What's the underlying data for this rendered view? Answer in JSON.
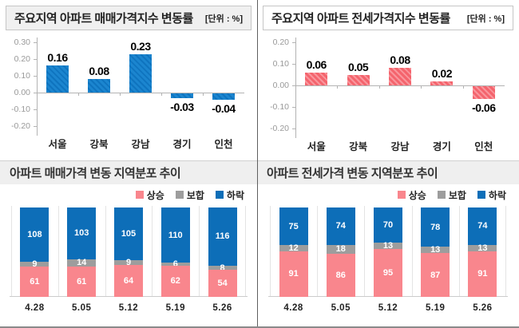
{
  "colors": {
    "rise_pink": "#f9868d",
    "flat_gray": "#9d9d9d",
    "fall_blue": "#0d6eb8",
    "hatch_blue_base": "#1b85cf",
    "hatch_pink_base": "#f4646d",
    "header_fill": "#f0f0f0",
    "header_border": "#c6c6c6",
    "axis": "#b3b3b3",
    "divider": "#5f5f5f"
  },
  "legend": [
    {
      "label": "상승",
      "color": "#f9868d"
    },
    {
      "label": "보합",
      "color": "#9d9d9d"
    },
    {
      "label": "하락",
      "color": "#0d6eb8"
    }
  ],
  "chart_data": [
    {
      "id": "sale_index",
      "type": "bar",
      "title": "주요지역 아파트 매매가격지수 변동률",
      "unit": "[단위 : %]",
      "categories": [
        "서울",
        "강북",
        "강남",
        "경기",
        "인천"
      ],
      "values": [
        0.16,
        0.08,
        0.23,
        -0.03,
        -0.04
      ],
      "ytick_labels": [
        "0.30",
        "0.20",
        "0.10",
        "0.00",
        "-0.10",
        "-0.20"
      ],
      "ylim": [
        -0.2,
        0.3
      ],
      "bar_class": "hatch-blue",
      "grid": false
    },
    {
      "id": "jeonse_index",
      "type": "bar",
      "title": "주요지역 아파트 전세가격지수 변동률",
      "unit": "[단위 : %]",
      "categories": [
        "서울",
        "강북",
        "강남",
        "경기",
        "인천"
      ],
      "values": [
        0.06,
        0.05,
        0.08,
        0.02,
        -0.06
      ],
      "ytick_labels": [
        "0.20",
        "0.10",
        "0.00",
        "-0.10",
        "-0.20"
      ],
      "ylim": [
        -0.2,
        0.2
      ],
      "bar_class": "hatch-pink",
      "grid": false
    },
    {
      "id": "sale_dist",
      "type": "stacked-bar",
      "title": "아파트 매매가격 변동 지역분포 추이",
      "categories": [
        "4.28",
        "5.05",
        "5.12",
        "5.19",
        "5.26"
      ],
      "series": [
        {
          "name": "상승",
          "color": "#f9868d",
          "values": [
            61,
            61,
            64,
            62,
            54
          ]
        },
        {
          "name": "보합",
          "color": "#9d9d9d",
          "values": [
            9,
            14,
            9,
            6,
            8
          ]
        },
        {
          "name": "하락",
          "color": "#0d6eb8",
          "values": [
            108,
            103,
            105,
            110,
            116
          ]
        }
      ],
      "legend_position": "top-right"
    },
    {
      "id": "jeonse_dist",
      "type": "stacked-bar",
      "title": "아파트 전세가격 변동 지역분포 추이",
      "categories": [
        "4.28",
        "5.05",
        "5.12",
        "5.19",
        "5.26"
      ],
      "series": [
        {
          "name": "상승",
          "color": "#f9868d",
          "values": [
            91,
            86,
            95,
            87,
            91
          ]
        },
        {
          "name": "보합",
          "color": "#9d9d9d",
          "values": [
            12,
            18,
            13,
            13,
            13
          ]
        },
        {
          "name": "하락",
          "color": "#0d6eb8",
          "values": [
            75,
            74,
            70,
            78,
            74
          ]
        }
      ],
      "legend_position": "top-right"
    }
  ]
}
